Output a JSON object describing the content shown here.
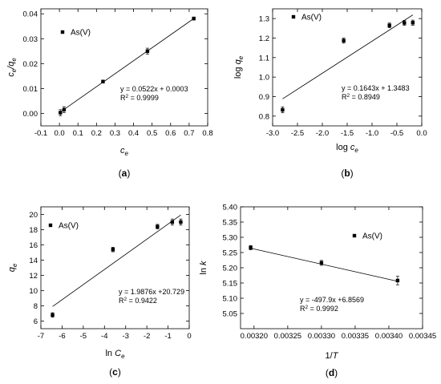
{
  "chart_data": [
    {
      "type": "scatter",
      "panel_label": "(a)",
      "xlabel": "c",
      "xlabel_sub": "e",
      "ylabel": "c",
      "ylabel_sub": "e",
      "ylabel_mid": "/q",
      "ylabel_sub2": "e",
      "xlim": [
        -0.1,
        0.8
      ],
      "ylim": [
        -0.005,
        0.042
      ],
      "xticks": [
        -0.1,
        0.0,
        0.1,
        0.2,
        0.3,
        0.4,
        0.5,
        0.6,
        0.7,
        0.8
      ],
      "xtick_labels": [
        "-0.1",
        "0.0",
        "0.1",
        "0.2",
        "0.3",
        "0.4",
        "0.5",
        "0.6",
        "0.7",
        "0.8"
      ],
      "yticks": [
        0.0,
        0.01,
        0.02,
        0.03,
        0.04
      ],
      "ytick_labels": [
        "0.00",
        "0.01",
        "0.02",
        "0.03",
        "0.04"
      ],
      "legend": "As(V)",
      "series": [
        {
          "name": "As(V)",
          "x": [
            0.005,
            0.025,
            0.235,
            0.475,
            0.725
          ],
          "y": [
            0.0003,
            0.0015,
            0.0128,
            0.025,
            0.0381
          ],
          "err": [
            0.0012,
            0.0012,
            0.0006,
            0.0012,
            0.0006
          ]
        }
      ],
      "fit": {
        "x": [
          0.0,
          0.725
        ],
        "y": [
          0.0003,
          0.0381
        ]
      },
      "equation": "y = 0.0522x + 0.0003",
      "r2_label": "R",
      "r2_value": " = 0.9999"
    },
    {
      "type": "scatter",
      "panel_label": "(b)",
      "xlabel": "log c",
      "xlabel_sub": "e",
      "ylabel": "log q",
      "ylabel_sub": "e",
      "xlim": [
        -3.0,
        0.0
      ],
      "ylim": [
        0.75,
        1.35
      ],
      "xticks": [
        -3.0,
        -2.5,
        -2.0,
        -1.5,
        -1.0,
        -0.5,
        0.0
      ],
      "xtick_labels": [
        "-3.0",
        "-2.5",
        "-2.0",
        "-1.5",
        "-1.0",
        "-0.5",
        "0.0"
      ],
      "yticks": [
        0.8,
        0.9,
        1.0,
        1.1,
        1.2,
        1.3
      ],
      "ytick_labels": [
        "0.8",
        "0.9",
        "1.0",
        "1.1",
        "1.2",
        "1.3"
      ],
      "legend": "As(V)",
      "series": [
        {
          "name": "As(V)",
          "x": [
            -2.8,
            -1.57,
            -0.65,
            -0.35,
            -0.18
          ],
          "y": [
            0.832,
            1.187,
            1.265,
            1.278,
            1.279
          ],
          "err": [
            0.015,
            0.013,
            0.012,
            0.013,
            0.013
          ]
        }
      ],
      "fit": {
        "x": [
          -2.8,
          -0.18
        ],
        "y": [
          0.8883,
          1.3187
        ]
      },
      "equation": "y = 0.1643x + 1.3483",
      "r2_label": "R",
      "r2_value": " = 0.8949"
    },
    {
      "type": "scatter",
      "panel_label": "(c)",
      "xlabel": "ln C",
      "xlabel_sub": "e",
      "ylabel": "q",
      "ylabel_sub": "e",
      "xlim": [
        -7,
        0
      ],
      "ylim": [
        5,
        21
      ],
      "xticks": [
        -7,
        -6,
        -5,
        -4,
        -3,
        -2,
        -1,
        0
      ],
      "xtick_labels": [
        "-7",
        "-6",
        "-5",
        "-4",
        "-3",
        "-2",
        "-1",
        "0"
      ],
      "yticks": [
        6,
        8,
        10,
        12,
        14,
        16,
        18,
        20
      ],
      "ytick_labels": [
        "6",
        "8",
        "10",
        "12",
        "14",
        "16",
        "18",
        "20"
      ],
      "legend": "As(V)",
      "series": [
        {
          "name": "As(V)",
          "x": [
            -6.45,
            -3.6,
            -1.5,
            -0.8,
            -0.4
          ],
          "y": [
            6.8,
            15.4,
            18.4,
            19.0,
            19.0
          ],
          "err": [
            0.3,
            0.3,
            0.3,
            0.4,
            0.4
          ]
        }
      ],
      "fit": {
        "x": [
          -6.45,
          -0.4
        ],
        "y": [
          7.91,
          19.93
        ]
      },
      "equation": "y = 1.9876x +20.729",
      "r2_label": "R",
      "r2_value": " = 0.9422"
    },
    {
      "type": "scatter",
      "panel_label": "(d)",
      "xlabel": "1/",
      "xlabel_italic": "T",
      "ylabel": "ln ",
      "ylabel_italic": "k",
      "xlim": [
        0.00318,
        0.00345
      ],
      "ylim": [
        5.0,
        5.4
      ],
      "xticks": [
        0.0032,
        0.00325,
        0.0033,
        0.00335,
        0.0034,
        0.00345
      ],
      "xtick_labels": [
        "0.00320",
        "0.00325",
        "0.00330",
        "0.00335",
        "0.00340",
        "0.00345"
      ],
      "yticks": [
        5.05,
        5.1,
        5.15,
        5.2,
        5.25,
        5.3,
        5.35,
        5.4
      ],
      "ytick_labels": [
        "5.05",
        "5.10",
        "5.15",
        "5.20",
        "5.25",
        "5.30",
        "5.35",
        "5.40"
      ],
      "legend": "As(V)",
      "series": [
        {
          "name": "As(V)",
          "x": [
            0.003195,
            0.0033,
            0.003413
          ],
          "y": [
            5.266,
            5.216,
            5.158
          ],
          "err": [
            0.007,
            0.008,
            0.014
          ]
        }
      ],
      "fit": {
        "x": [
          0.003195,
          0.003413
        ],
        "y": [
          5.2641,
          5.1556
        ]
      },
      "equation": "y = -497.9x +6.8569",
      "r2_label": "R",
      "r2_value": " = 0.9992"
    }
  ]
}
